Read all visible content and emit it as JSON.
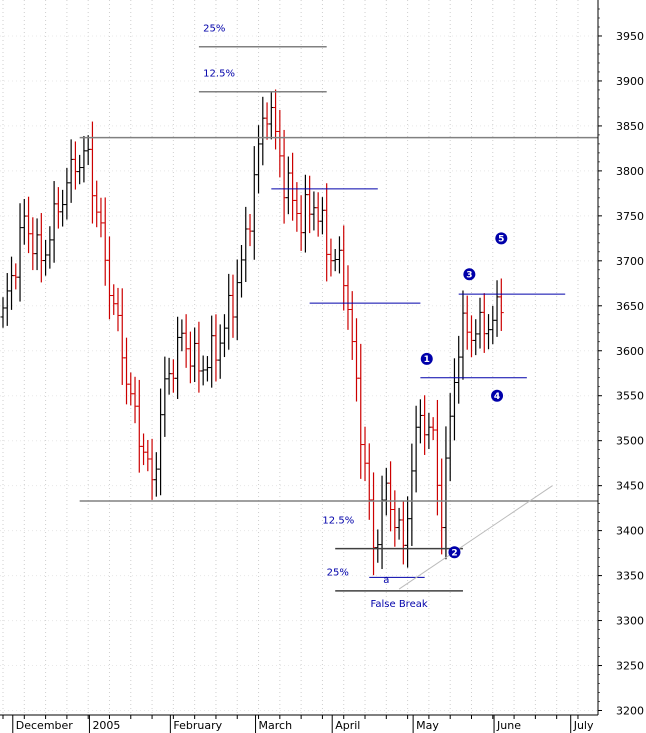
{
  "chart_data": {
    "type": "ohlc",
    "title": "",
    "xlabel": "",
    "ylabel": "",
    "ylim": [
      3195,
      3990
    ],
    "y_ticks": [
      3200,
      3250,
      3300,
      3350,
      3400,
      3450,
      3500,
      3550,
      3600,
      3650,
      3700,
      3750,
      3800,
      3850,
      3900,
      3950
    ],
    "x_labels": [
      {
        "label": "December",
        "bar": 3
      },
      {
        "label": "2005",
        "bar": 21
      },
      {
        "label": "February",
        "bar": 40
      },
      {
        "label": "March",
        "bar": 60
      },
      {
        "label": "April",
        "bar": 78
      },
      {
        "label": "May",
        "bar": 97
      },
      {
        "label": "June",
        "bar": 116
      },
      {
        "label": "July",
        "bar": 134
      }
    ],
    "grid": true,
    "n_slots": 140,
    "colors": {
      "up": "#000000",
      "down": "#cc0000",
      "annotation": "#0000aa",
      "support": "#808080",
      "trend": "#bbbbbb"
    },
    "anchors": [
      [
        0,
        3640
      ],
      [
        2,
        3680
      ],
      [
        5,
        3745
      ],
      [
        9,
        3700
      ],
      [
        13,
        3760
      ],
      [
        17,
        3810
      ],
      [
        20,
        3815
      ],
      [
        24,
        3700
      ],
      [
        28,
        3600
      ],
      [
        30,
        3545
      ],
      [
        33,
        3490
      ],
      [
        35,
        3450
      ],
      [
        38,
        3560
      ],
      [
        42,
        3615
      ],
      [
        46,
        3580
      ],
      [
        50,
        3600
      ],
      [
        54,
        3655
      ],
      [
        57,
        3720
      ],
      [
        60,
        3825
      ],
      [
        62,
        3875
      ],
      [
        64,
        3840
      ],
      [
        66,
        3790
      ],
      [
        70,
        3745
      ],
      [
        73,
        3765
      ],
      [
        77,
        3705
      ],
      [
        80,
        3690
      ],
      [
        83,
        3560
      ],
      [
        85,
        3470
      ],
      [
        87,
        3380
      ],
      [
        90,
        3445
      ],
      [
        92,
        3415
      ],
      [
        94,
        3380
      ],
      [
        96,
        3470
      ],
      [
        98,
        3530
      ],
      [
        101,
        3500
      ],
      [
        103,
        3415
      ],
      [
        106,
        3575
      ],
      [
        108,
        3625
      ],
      [
        111,
        3620
      ],
      [
        113,
        3630
      ],
      [
        115,
        3630
      ],
      [
        117,
        3660
      ]
    ],
    "hlines": [
      {
        "y": 3837,
        "x1": 18,
        "x2": 140,
        "color": "#808080",
        "width": 1.5
      },
      {
        "y": 3433,
        "x1": 18,
        "x2": 140,
        "color": "#808080",
        "width": 1.5
      },
      {
        "y": 3938,
        "x1": 46,
        "x2": 76,
        "color": "#808080",
        "width": 1.5
      },
      {
        "y": 3888,
        "x1": 46,
        "x2": 76,
        "color": "#808080",
        "width": 1.5
      },
      {
        "y": 3780,
        "x1": 63,
        "x2": 88,
        "color": "#0000aa",
        "width": 1
      },
      {
        "y": 3653,
        "x1": 72,
        "x2": 98,
        "color": "#0000aa",
        "width": 1
      },
      {
        "y": 3663,
        "x1": 107,
        "x2": 132,
        "color": "#0000aa",
        "width": 1
      },
      {
        "y": 3570,
        "x1": 98,
        "x2": 123,
        "color": "#0000aa",
        "width": 1
      },
      {
        "y": 3380,
        "x1": 78,
        "x2": 108,
        "color": "#404040",
        "width": 1.5
      },
      {
        "y": 3348,
        "x1": 86,
        "x2": 99,
        "color": "#0000aa",
        "width": 1
      },
      {
        "y": 3333,
        "x1": 78,
        "x2": 108,
        "color": "#404040",
        "width": 1.5
      }
    ],
    "trendline": {
      "from": [
        93,
        3335
      ],
      "to": [
        129,
        3450
      ]
    },
    "fib_labels": [
      {
        "text": "25%",
        "x": 47,
        "y": 3955
      },
      {
        "text": "12.5%",
        "x": 47,
        "y": 3905
      },
      {
        "text": "12.5%",
        "x": 75,
        "y": 3408
      },
      {
        "text": "25%",
        "x": 76,
        "y": 3350
      }
    ],
    "annotations": [
      {
        "text": "False Break",
        "x": 93,
        "y": 3315
      },
      {
        "text": "a",
        "x": 90,
        "y": 3342
      }
    ],
    "wave_labels": [
      {
        "label": "1",
        "x": 99.5,
        "y": 3591
      },
      {
        "label": "2",
        "x": 106,
        "y": 3376
      },
      {
        "label": "3",
        "x": 109.5,
        "y": 3685
      },
      {
        "label": "4",
        "x": 116,
        "y": 3550
      },
      {
        "label": "5",
        "x": 117,
        "y": 3725
      }
    ]
  }
}
